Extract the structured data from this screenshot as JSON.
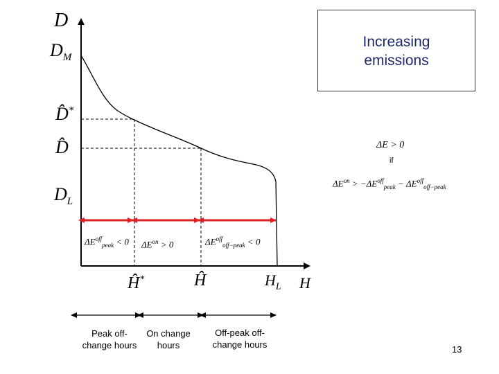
{
  "axis": {
    "y_label": "D",
    "x_label": "H",
    "y_ticks": [
      "D_M",
      "D̂*",
      "D̂",
      "D_L"
    ],
    "x_ticks": [
      "Ĥ*",
      "Ĥ",
      "H_L"
    ]
  },
  "box": {
    "line1": "Increasing",
    "line2": "emissions"
  },
  "conditions": {
    "delta_e": "ΔE > 0",
    "if_word": "if",
    "inequality": "ΔE^on > −ΔE^off_peak − ΔE^off_off−peak"
  },
  "segments": [
    {
      "label": "ΔE^off_peak < 0"
    },
    {
      "label": "ΔE^on > 0"
    },
    {
      "label": "ΔE^off_off−peak < 0"
    }
  ],
  "bottom_labels": [
    {
      "line1": "Peak off-",
      "line2": "change hours"
    },
    {
      "line1": "On change",
      "line2": "hours"
    },
    {
      "line1": "Off-peak off-",
      "line2": "change hours"
    }
  ],
  "page_number": "13",
  "colors": {
    "segment_arrow": "#e02020",
    "box_text": "#1f2a6b"
  }
}
